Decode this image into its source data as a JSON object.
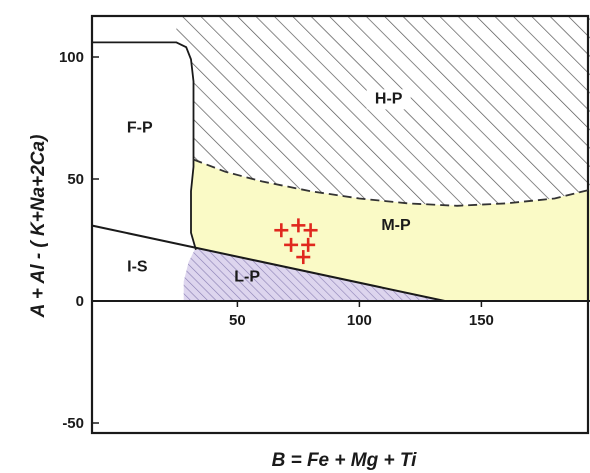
{
  "chart_data": {
    "type": "scatter",
    "title": "",
    "xlabel": "B = Fe + Mg + Ti",
    "ylabel": "A + Al - ( K+Na+2Ca)",
    "xlim": [
      -10,
      200
    ],
    "ylim": [
      -55,
      117
    ],
    "x_ticks": [
      "50",
      "100",
      "150"
    ],
    "x_tick_values": [
      50,
      100,
      150
    ],
    "y_ticks": [
      "100",
      "50",
      "0",
      "-50"
    ],
    "y_tick_values": [
      100,
      50,
      0,
      -50
    ],
    "grid": false,
    "legend": "none",
    "region_labels": [
      {
        "name": "region-label-hp",
        "text": "H-P",
        "at": [
          112,
          81
        ]
      },
      {
        "name": "region-label-fp",
        "text": "F-P",
        "at": [
          10,
          69
        ]
      },
      {
        "name": "region-label-mp",
        "text": "M-P",
        "at": [
          115,
          29
        ]
      },
      {
        "name": "region-label-is",
        "text": "I-S",
        "at": [
          9,
          12
        ]
      },
      {
        "name": "region-label-lp",
        "text": "L-P",
        "at": [
          54,
          8
        ]
      }
    ],
    "boundaries": {
      "is_line": [
        [
          -10,
          31
        ],
        [
          135,
          0
        ]
      ],
      "fp_curve": [
        [
          -10,
          106
        ],
        [
          25,
          106
        ],
        [
          29,
          104
        ],
        [
          31,
          99
        ],
        [
          32,
          90
        ],
        [
          32,
          55
        ],
        [
          31,
          45
        ],
        [
          31,
          28
        ],
        [
          33,
          21
        ]
      ],
      "hp_dashed": [
        [
          32,
          58
        ],
        [
          45,
          53
        ],
        [
          60,
          49
        ],
        [
          80,
          45
        ],
        [
          100,
          42
        ],
        [
          120,
          40
        ],
        [
          140,
          39
        ],
        [
          160,
          40
        ],
        [
          180,
          42
        ],
        [
          200,
          47
        ]
      ],
      "lp_curve": [
        [
          28,
          0
        ],
        [
          28,
          8
        ],
        [
          30,
          16
        ],
        [
          33,
          22
        ]
      ]
    },
    "series": [
      {
        "points": [
          [
            68,
            29
          ],
          [
            75,
            31
          ],
          [
            80,
            29
          ],
          [
            72,
            23
          ],
          [
            79,
            23
          ],
          [
            77,
            18
          ]
        ]
      }
    ],
    "colors": {
      "mp_fill": "#fafac6",
      "hp_hatch": "#555555",
      "lp_hatch": "#8a7fb4",
      "lp_fill": "#ddd5ee",
      "marker": "#e0281e"
    }
  }
}
